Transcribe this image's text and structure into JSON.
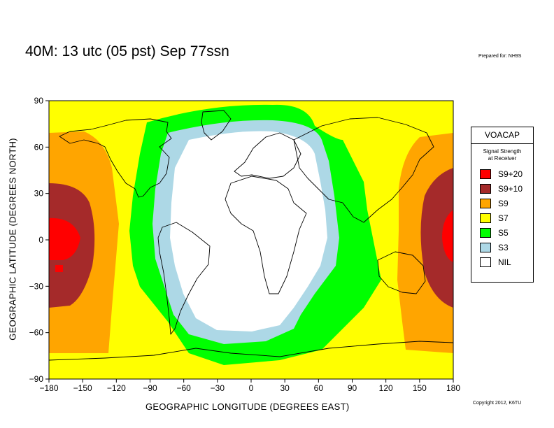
{
  "title": "40M:  13 utc (05 pst) Sep 77ssn",
  "prepared_by": "Prepared for: NH9S",
  "copyright": "Copyright 2012, K6TU",
  "axes": {
    "xlabel": "GEOGRAPHIC LONGITUDE (DEGREES EAST)",
    "ylabel": "GEOGRAPHIC LATITUDE (DEGREES NORTH)",
    "xticks": [
      "−180",
      "−150",
      "−120",
      "−90",
      "−60",
      "−30",
      "0",
      "30",
      "60",
      "90",
      "120",
      "150",
      "180"
    ],
    "yticks": [
      "90",
      "60",
      "30",
      "0",
      "−30",
      "−60",
      "−90"
    ],
    "xlim": [
      -180,
      180
    ],
    "ylim": [
      -90,
      90
    ]
  },
  "legend": {
    "title": "VOACAP",
    "subtitle_line1": "Signal Strength",
    "subtitle_line2": "at Receiver",
    "items": [
      {
        "label": "S9+20",
        "color": "#ff0000"
      },
      {
        "label": "S9+10",
        "color": "#a52a2a"
      },
      {
        "label": "S9",
        "color": "#ffa500"
      },
      {
        "label": "S7",
        "color": "#ffff00"
      },
      {
        "label": "S5",
        "color": "#00ff00"
      },
      {
        "label": "S3",
        "color": "#add8e6"
      },
      {
        "label": "NIL",
        "color": "#ffffff"
      }
    ]
  }
}
